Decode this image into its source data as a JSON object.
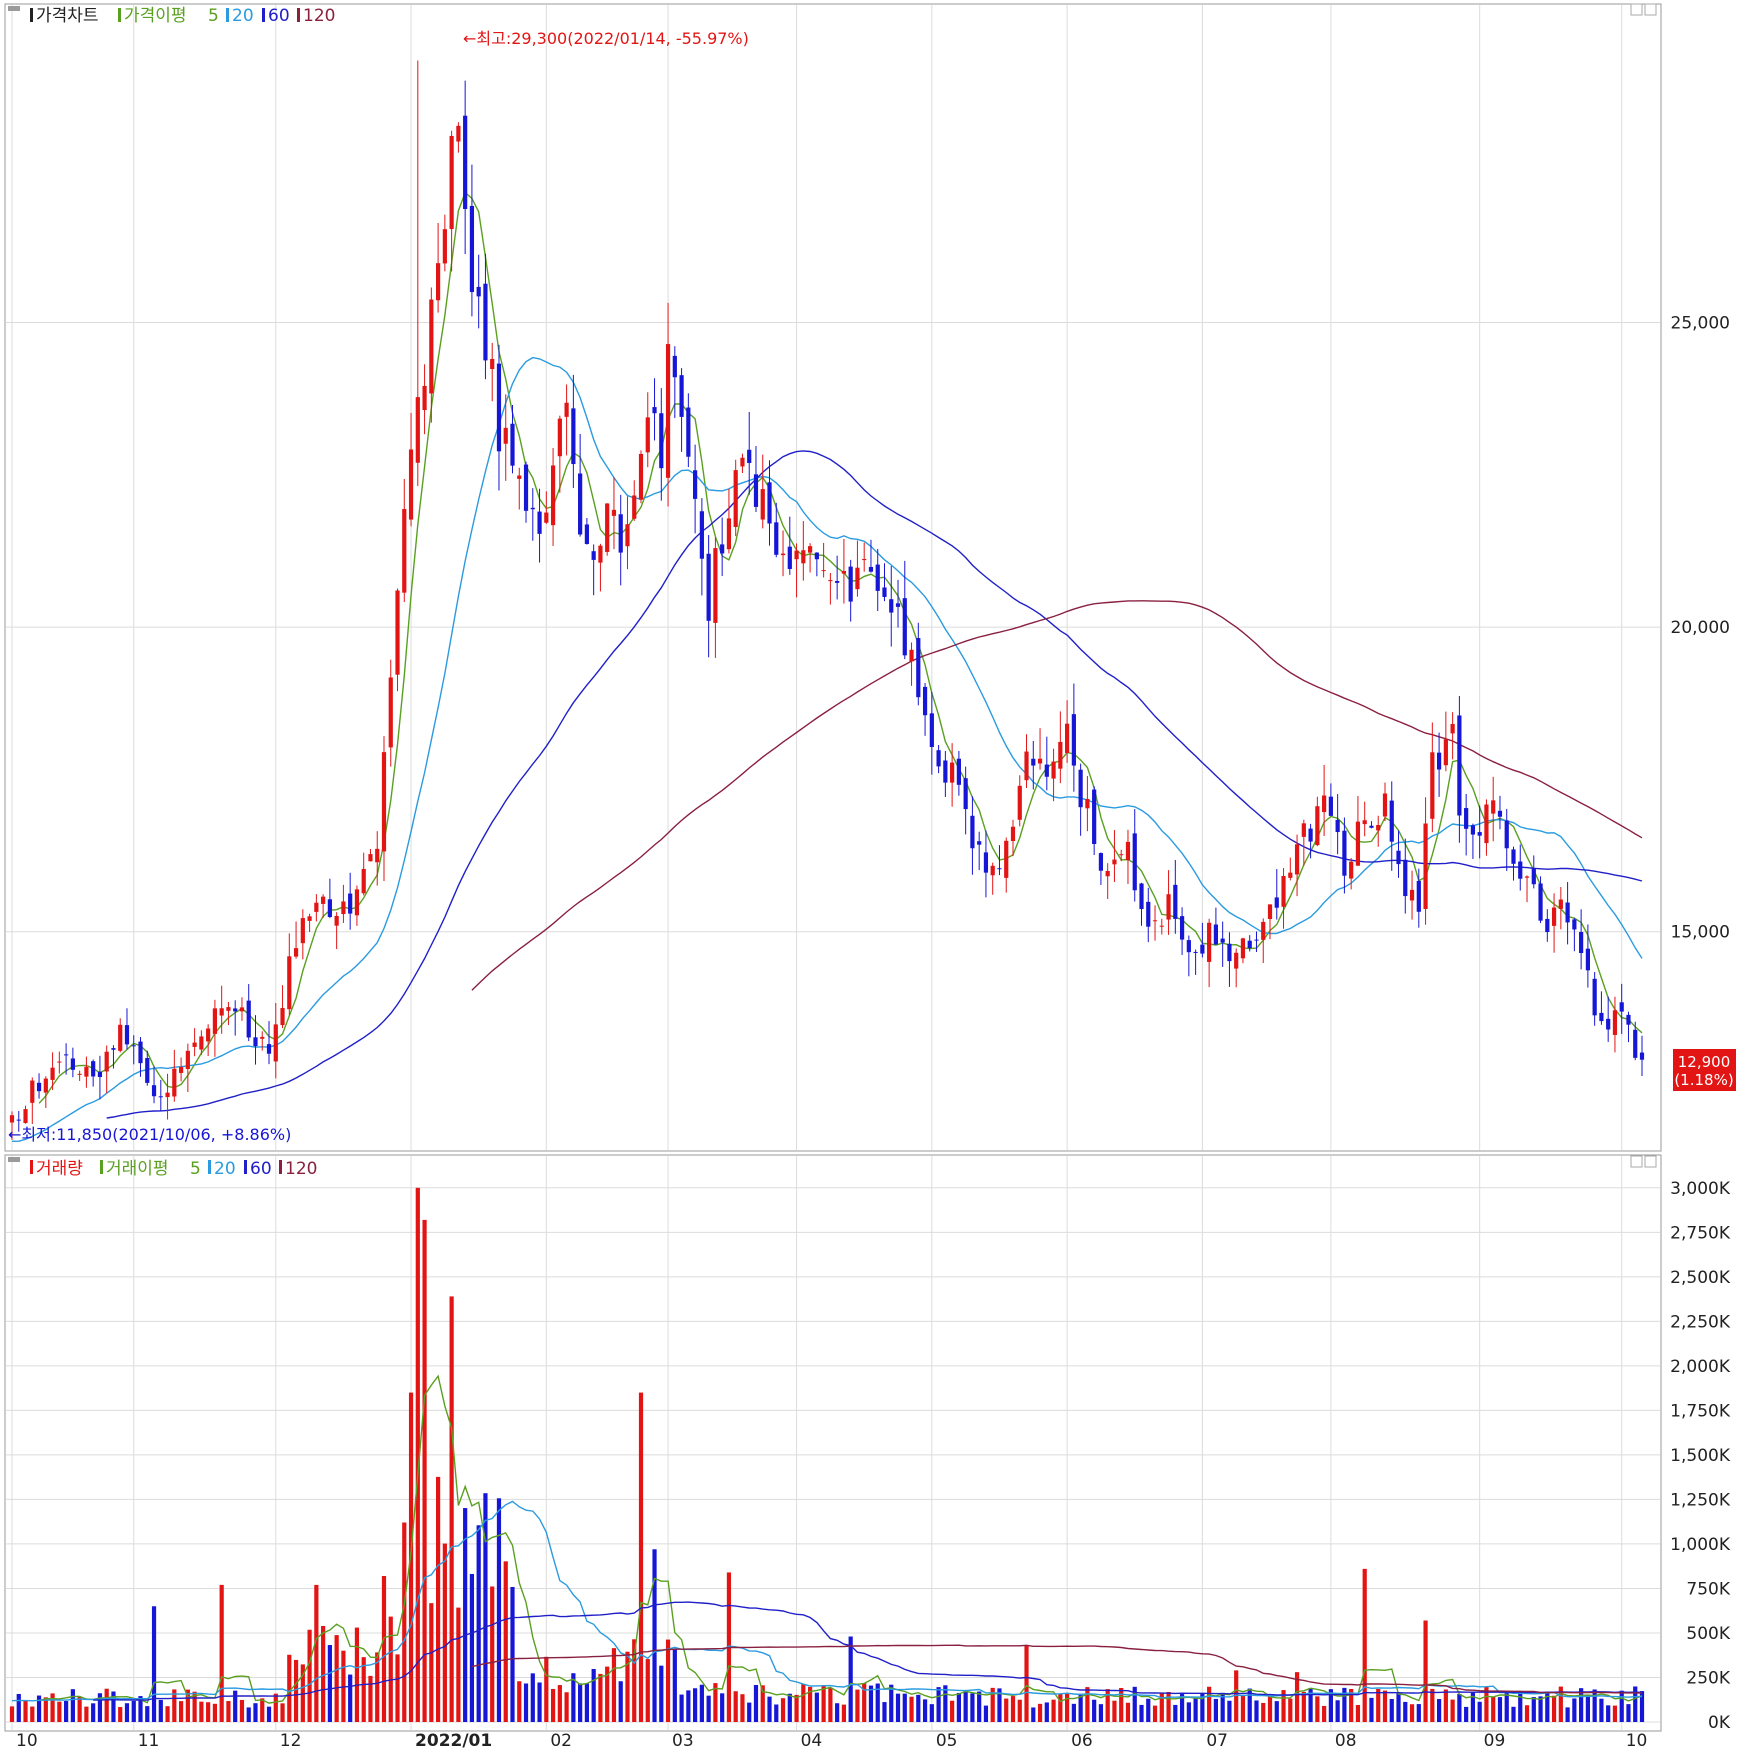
{
  "colors": {
    "up": "#e31414",
    "down": "#1616d6",
    "ma5": "#5aa020",
    "ma20": "#2a9be0",
    "ma60": "#2020c8",
    "ma120": "#8a2040",
    "grid": "#dcdcdc",
    "frame": "#8a8a8a"
  },
  "price_panel": {
    "legend": [
      "가격차트",
      "가격이평",
      "5",
      "20",
      "60",
      "120"
    ],
    "high_annotation": "←최고:29,300(2022/01/14, -55.97%)",
    "low_annotation": "←최저:11,850(2021/10/06, +8.86%)",
    "current_price": "12,900",
    "current_change": "(1.18%)"
  },
  "volume_panel": {
    "legend": [
      "거래량",
      "거래이평",
      "5",
      "20",
      "60",
      "120"
    ]
  },
  "x_axis_labels": [
    "10",
    "11",
    "12",
    "2022/01",
    "02",
    "03",
    "04",
    "05",
    "06",
    "07",
    "08",
    "09",
    "10"
  ],
  "chart_data": [
    {
      "type": "candlestick",
      "title": "가격차트",
      "y_tick_labels": [
        "15,000",
        "20,000",
        "25,000"
      ],
      "y_ticks": [
        15000,
        20000,
        25000
      ],
      "ylim": [
        11500,
        29800
      ],
      "x_tick_labels": [
        "10",
        "11",
        "12",
        "2022/01",
        "02",
        "03",
        "04",
        "05",
        "06",
        "07",
        "08",
        "09",
        "10"
      ],
      "x_tick_index": [
        0,
        18,
        39,
        59,
        79,
        97,
        116,
        136,
        156,
        176,
        195,
        217,
        238
      ],
      "high": {
        "value": 29300,
        "date": "2022/01/14",
        "pct": -55.97
      },
      "low": {
        "value": 11850,
        "date": "2021/10/06",
        "pct": 8.86
      },
      "last": {
        "value": 12900,
        "change_pct": 1.18
      },
      "moving_averages": [
        5,
        20,
        60,
        120
      ],
      "close_path": [
        [
          0,
          11900
        ],
        [
          6,
          12900
        ],
        [
          12,
          12500
        ],
        [
          16,
          13400
        ],
        [
          22,
          12300
        ],
        [
          26,
          13000
        ],
        [
          32,
          13800
        ],
        [
          38,
          13100
        ],
        [
          42,
          14800
        ],
        [
          46,
          15600
        ],
        [
          50,
          15200
        ],
        [
          54,
          16500
        ],
        [
          58,
          22000
        ],
        [
          62,
          25000
        ],
        [
          66,
          28500
        ],
        [
          68,
          25800
        ],
        [
          70,
          24800
        ],
        [
          72,
          23200
        ],
        [
          74,
          22600
        ],
        [
          78,
          21700
        ],
        [
          82,
          23500
        ],
        [
          84,
          21700
        ],
        [
          86,
          20800
        ],
        [
          88,
          22000
        ],
        [
          91,
          21400
        ],
        [
          94,
          23500
        ],
        [
          96,
          23000
        ],
        [
          97,
          24300
        ],
        [
          100,
          23200
        ],
        [
          102,
          21200
        ],
        [
          103,
          20400
        ],
        [
          106,
          22100
        ],
        [
          108,
          22700
        ],
        [
          111,
          21900
        ],
        [
          113,
          21400
        ],
        [
          116,
          21100
        ],
        [
          119,
          20900
        ],
        [
          122,
          20600
        ],
        [
          126,
          20800
        ],
        [
          129,
          20600
        ],
        [
          132,
          19800
        ],
        [
          136,
          17800
        ],
        [
          139,
          17600
        ],
        [
          142,
          16600
        ],
        [
          144,
          15800
        ],
        [
          147,
          16400
        ],
        [
          150,
          17800
        ],
        [
          153,
          17700
        ],
        [
          156,
          18200
        ],
        [
          159,
          16900
        ],
        [
          162,
          15800
        ],
        [
          165,
          16200
        ],
        [
          168,
          14900
        ],
        [
          171,
          15400
        ],
        [
          174,
          14600
        ],
        [
          177,
          14900
        ],
        [
          180,
          14500
        ],
        [
          182,
          14800
        ],
        [
          186,
          15200
        ],
        [
          190,
          16400
        ],
        [
          194,
          17000
        ],
        [
          197,
          16100
        ],
        [
          200,
          16800
        ],
        [
          203,
          17000
        ],
        [
          206,
          15800
        ],
        [
          208,
          15600
        ],
        [
          210,
          17700
        ],
        [
          213,
          18100
        ],
        [
          214,
          17200
        ],
        [
          216,
          16700
        ],
        [
          219,
          16900
        ],
        [
          222,
          16300
        ],
        [
          224,
          15900
        ],
        [
          227,
          15200
        ],
        [
          229,
          15300
        ],
        [
          232,
          14800
        ],
        [
          234,
          13700
        ],
        [
          236,
          13400
        ],
        [
          238,
          13700
        ],
        [
          240,
          12800
        ],
        [
          241,
          12900
        ]
      ]
    },
    {
      "type": "bar",
      "title": "거래량",
      "y_tick_labels": [
        "0K",
        "250K",
        "500K",
        "750K",
        "1,000K",
        "1,250K",
        "1,500K",
        "1,750K",
        "2,000K",
        "2,250K",
        "2,500K",
        "2,750K",
        "3,000K"
      ],
      "y_ticks": [
        0,
        250,
        500,
        750,
        1000,
        1250,
        1500,
        1750,
        2000,
        2250,
        2500,
        2750,
        3000
      ],
      "y_unit": "K",
      "ylim": [
        0,
        3100
      ],
      "moving_averages": [
        5,
        20,
        60,
        120
      ],
      "spikes": [
        [
          21,
          650
        ],
        [
          31,
          770
        ],
        [
          45,
          770
        ],
        [
          55,
          820
        ],
        [
          59,
          1850
        ],
        [
          60,
          3000
        ],
        [
          61,
          2820
        ],
        [
          65,
          2390
        ],
        [
          93,
          1850
        ],
        [
          95,
          970
        ],
        [
          106,
          840
        ],
        [
          124,
          480
        ],
        [
          150,
          430
        ],
        [
          181,
          290
        ],
        [
          190,
          280
        ],
        [
          200,
          860
        ],
        [
          209,
          570
        ]
      ]
    }
  ]
}
